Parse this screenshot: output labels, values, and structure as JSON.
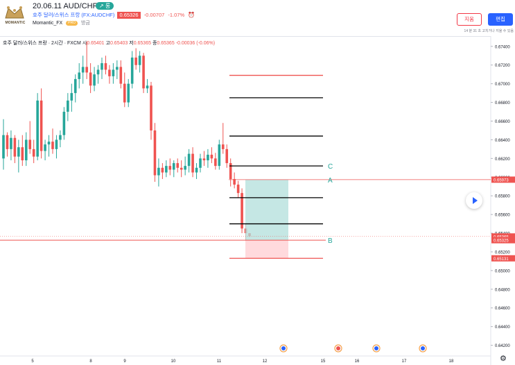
{
  "header": {
    "logo_text": "MOMANTIC",
    "title": "20.06.11 AUD/CHF",
    "trend_badge": "↗ 롱",
    "symbol_name": "호주 달러/스위스 프랑 (FX:AUDCHF)",
    "price": "0.65326",
    "change": "-0.00707",
    "change_pct": "-1.07%",
    "author": "Momantic_FX",
    "pro_badge": "PRO",
    "time_ago": "방금",
    "delete_label": "지움",
    "edit_label": "편집",
    "edit_note": "14 분 31 초 고치거나 지울 수 있음"
  },
  "legend": {
    "name": "호주 달러/스위스 프랑 · 2시간 · FXCM",
    "open_label": "시",
    "open": "0.65401",
    "high_label": "고",
    "high": "0.65403",
    "low_label": "저",
    "low": "0.65365",
    "close_label": "종",
    "close": "0.65365",
    "change": "-0.00036 (-0.06%)"
  },
  "colors": {
    "up": "#26a69a",
    "down": "#ef5350",
    "target_zone": "#b2dfdb",
    "stop_zone": "#ffcdd2",
    "accent": "#2962ff"
  },
  "icons": {
    "play": "play-icon",
    "settings": "gear-icon",
    "alarm": "alarm-clock-icon"
  },
  "chart_data": {
    "type": "candlestick",
    "y_axis_ticks": [
      "0.67400",
      "0.67200",
      "0.67000",
      "0.66800",
      "0.66600",
      "0.66400",
      "0.66200",
      "0.66000",
      "0.65800",
      "0.65600",
      "0.65400",
      "0.65200",
      "0.65000",
      "0.64800",
      "0.64600",
      "0.64400",
      "0.64200"
    ],
    "ylim": [
      0.6413,
      0.6751
    ],
    "x_axis_ticks": [
      "5",
      "8",
      "9",
      "10",
      "11",
      "12",
      "15",
      "16",
      "17",
      "18"
    ],
    "price_labels": [
      {
        "value": 0.65973,
        "text": "0.65973",
        "color": "#ef5350"
      },
      {
        "value": 0.65365,
        "text": "0.65365",
        "color": "#ef5350"
      },
      {
        "value": 0.65325,
        "text": "0.65325",
        "color": "#ef5350"
      },
      {
        "value": 0.65131,
        "text": "0.65131",
        "color": "#ef5350"
      }
    ],
    "candles": [
      [
        0.662,
        0.6662,
        0.6608,
        0.6645
      ],
      [
        0.6645,
        0.6648,
        0.6622,
        0.663
      ],
      [
        0.663,
        0.665,
        0.6618,
        0.6642
      ],
      [
        0.6642,
        0.6645,
        0.6615,
        0.6622
      ],
      [
        0.6622,
        0.664,
        0.6605,
        0.6632
      ],
      [
        0.6632,
        0.6645,
        0.6612,
        0.6618
      ],
      [
        0.6618,
        0.6648,
        0.6612,
        0.664
      ],
      [
        0.664,
        0.666,
        0.6625,
        0.663
      ],
      [
        0.663,
        0.664,
        0.6615,
        0.6622
      ],
      [
        0.6622,
        0.669,
        0.6618,
        0.6682
      ],
      [
        0.6682,
        0.6695,
        0.662,
        0.6628
      ],
      [
        0.6628,
        0.664,
        0.6618,
        0.6635
      ],
      [
        0.6635,
        0.6645,
        0.6622,
        0.6638
      ],
      [
        0.6638,
        0.6652,
        0.6625,
        0.663
      ],
      [
        0.663,
        0.6645,
        0.662,
        0.664
      ],
      [
        0.664,
        0.665,
        0.6632,
        0.6645
      ],
      [
        0.6645,
        0.6675,
        0.664,
        0.667
      ],
      [
        0.667,
        0.669,
        0.666,
        0.6682
      ],
      [
        0.6682,
        0.67,
        0.667,
        0.669
      ],
      [
        0.669,
        0.671,
        0.668,
        0.6705
      ],
      [
        0.6705,
        0.6722,
        0.6695,
        0.6712
      ],
      [
        0.6712,
        0.673,
        0.67,
        0.6718
      ],
      [
        0.6718,
        0.6745,
        0.6705,
        0.6712
      ],
      [
        0.6712,
        0.6722,
        0.669,
        0.6698
      ],
      [
        0.6698,
        0.6718,
        0.6692,
        0.671
      ],
      [
        0.671,
        0.672,
        0.67,
        0.6715
      ],
      [
        0.6715,
        0.6728,
        0.6705,
        0.6722
      ],
      [
        0.6722,
        0.673,
        0.671,
        0.6715
      ],
      [
        0.6715,
        0.672,
        0.67,
        0.6708
      ],
      [
        0.6708,
        0.6722,
        0.67,
        0.6715
      ],
      [
        0.6715,
        0.6725,
        0.6705,
        0.6718
      ],
      [
        0.6718,
        0.6725,
        0.6695,
        0.67
      ],
      [
        0.67,
        0.6712,
        0.6675,
        0.668
      ],
      [
        0.668,
        0.6705,
        0.6675,
        0.67
      ],
      [
        0.67,
        0.6735,
        0.6695,
        0.6728
      ],
      [
        0.6728,
        0.6738,
        0.6715,
        0.672
      ],
      [
        0.672,
        0.6735,
        0.6712,
        0.673
      ],
      [
        0.673,
        0.6733,
        0.669,
        0.6695
      ],
      [
        0.6695,
        0.6705,
        0.669,
        0.6698
      ],
      [
        0.6698,
        0.6702,
        0.664,
        0.665
      ],
      [
        0.665,
        0.6658,
        0.6595,
        0.6602
      ],
      [
        0.6602,
        0.662,
        0.659,
        0.661
      ],
      [
        0.661,
        0.6615,
        0.6598,
        0.6605
      ],
      [
        0.6605,
        0.6618,
        0.66,
        0.6612
      ],
      [
        0.6612,
        0.662,
        0.6602,
        0.6608
      ],
      [
        0.6608,
        0.6618,
        0.66,
        0.6615
      ],
      [
        0.6615,
        0.662,
        0.6605,
        0.661
      ],
      [
        0.661,
        0.6618,
        0.66,
        0.6608
      ],
      [
        0.6608,
        0.6622,
        0.6602,
        0.6612
      ],
      [
        0.6612,
        0.663,
        0.6605,
        0.6625
      ],
      [
        0.6625,
        0.6632,
        0.66,
        0.6605
      ],
      [
        0.6605,
        0.6615,
        0.6598,
        0.661
      ],
      [
        0.661,
        0.6625,
        0.6605,
        0.662
      ],
      [
        0.662,
        0.6628,
        0.6612,
        0.6618
      ],
      [
        0.6618,
        0.663,
        0.661,
        0.6624
      ],
      [
        0.6624,
        0.6632,
        0.6615,
        0.662
      ],
      [
        0.662,
        0.6626,
        0.6608,
        0.6612
      ],
      [
        0.6612,
        0.664,
        0.6608,
        0.6635
      ],
      [
        0.6635,
        0.6658,
        0.6625,
        0.663
      ],
      [
        0.663,
        0.6635,
        0.661,
        0.6615
      ],
      [
        0.6615,
        0.662,
        0.659,
        0.6598
      ],
      [
        0.6598,
        0.6605,
        0.6588,
        0.6592
      ],
      [
        0.6592,
        0.6596,
        0.6578,
        0.6583
      ],
      [
        0.6583,
        0.6588,
        0.654,
        0.6545
      ],
      [
        0.6545,
        0.655,
        0.6532,
        0.654
      ],
      [
        0.654,
        0.654,
        0.6536,
        0.6537
      ]
    ],
    "drawing": {
      "horizontal_levels": [
        {
          "value": 0.6709,
          "color": "#ef5350"
        },
        {
          "value": 0.6685,
          "color": "#000000"
        },
        {
          "value": 0.6644,
          "color": "#000000"
        },
        {
          "value": 0.6612,
          "color": "#000000"
        },
        {
          "value": 0.6578,
          "color": "#000000"
        },
        {
          "value": 0.655,
          "color": "#000000"
        },
        {
          "value": 0.65131,
          "color": "#ef5350"
        }
      ],
      "long_position": {
        "entry": 0.65325,
        "target": 0.65973,
        "stop": 0.65131
      },
      "entry_line": 0.65325,
      "labels": [
        {
          "text": "C",
          "value": 0.6612
        },
        {
          "text": "A",
          "value": 0.65973
        },
        {
          "text": "B",
          "value": 0.65325
        }
      ]
    }
  }
}
